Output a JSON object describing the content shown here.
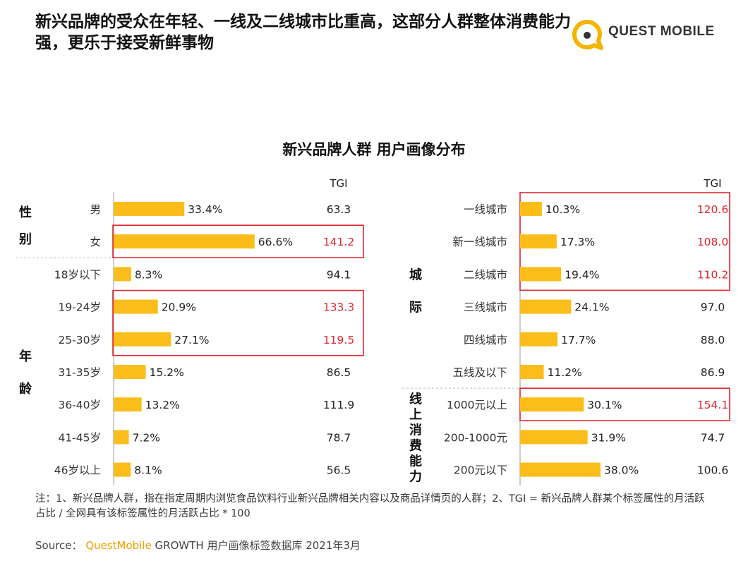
{
  "header": {
    "title": "新兴品牌的受众在年轻、一线及二线城市比重高，这部分人群整体消费能力强，更乐于接受新鲜事物",
    "logo_text": "QUEST MOBILE"
  },
  "colors": {
    "bar": "#fbbd1a",
    "highlight_box": "#e0262e",
    "highlight_text": "#e0262e",
    "text": "#222222"
  },
  "chart_data": {
    "type": "bar",
    "title": "新兴品牌人群 用户画像分布",
    "tgi_label": "TGI",
    "panels": [
      {
        "groups": [
          {
            "label": "性别",
            "rows": [
              {
                "category": "男",
                "value": 33.4,
                "value_label": "33.4%",
                "tgi": "63.3",
                "highlight": false
              },
              {
                "category": "女",
                "value": 66.6,
                "value_label": "66.6%",
                "tgi": "141.2",
                "highlight": true
              }
            ]
          },
          {
            "label": "年龄",
            "rows": [
              {
                "category": "18岁以下",
                "value": 8.3,
                "value_label": "8.3%",
                "tgi": "94.1",
                "highlight": false
              },
              {
                "category": "19-24岁",
                "value": 20.9,
                "value_label": "20.9%",
                "tgi": "133.3",
                "highlight": true
              },
              {
                "category": "25-30岁",
                "value": 27.1,
                "value_label": "27.1%",
                "tgi": "119.5",
                "highlight": true
              },
              {
                "category": "31-35岁",
                "value": 15.2,
                "value_label": "15.2%",
                "tgi": "86.5",
                "highlight": false
              },
              {
                "category": "36-40岁",
                "value": 13.2,
                "value_label": "13.2%",
                "tgi": "111.9",
                "highlight": false
              },
              {
                "category": "41-45岁",
                "value": 7.2,
                "value_label": "7.2%",
                "tgi": "78.7",
                "highlight": false
              },
              {
                "category": "46岁以上",
                "value": 8.1,
                "value_label": "8.1%",
                "tgi": "56.5",
                "highlight": false
              }
            ]
          }
        ]
      },
      {
        "groups": [
          {
            "label": "城际",
            "rows": [
              {
                "category": "一线城市",
                "value": 10.3,
                "value_label": "10.3%",
                "tgi": "120.6",
                "highlight": true
              },
              {
                "category": "新一线城市",
                "value": 17.3,
                "value_label": "17.3%",
                "tgi": "108.0",
                "highlight": true
              },
              {
                "category": "二线城市",
                "value": 19.4,
                "value_label": "19.4%",
                "tgi": "110.2",
                "highlight": true
              },
              {
                "category": "三线城市",
                "value": 24.1,
                "value_label": "24.1%",
                "tgi": "97.0",
                "highlight": false
              },
              {
                "category": "四线城市",
                "value": 17.7,
                "value_label": "17.7%",
                "tgi": "88.0",
                "highlight": false
              },
              {
                "category": "五线及以下",
                "value": 11.2,
                "value_label": "11.2%",
                "tgi": "86.9",
                "highlight": false
              }
            ]
          },
          {
            "label": "线上消费能力",
            "rows": [
              {
                "category": "1000元以上",
                "value": 30.1,
                "value_label": "30.1%",
                "tgi": "154.1",
                "highlight": true
              },
              {
                "category": "200-1000元",
                "value": 31.9,
                "value_label": "31.9%",
                "tgi": "74.7",
                "highlight": false
              },
              {
                "category": "200元以下",
                "value": 38.0,
                "value_label": "38.0%",
                "tgi": "100.6",
                "highlight": false
              }
            ]
          }
        ]
      }
    ]
  },
  "footer": {
    "note": "注：1、新兴品牌人群，指在指定周期内浏览食品饮料行业新兴品牌相关内容以及商品详情页的人群；2、TGI = 新兴品牌人群某个标签属性的月活跃占比 / 全网具有该标签属性的月活跃占比 * 100",
    "source_label": "Source：",
    "source_brand": "QuestMobile",
    "source_rest": " GROWTH 用户画像标签数据库 2021年3月"
  }
}
